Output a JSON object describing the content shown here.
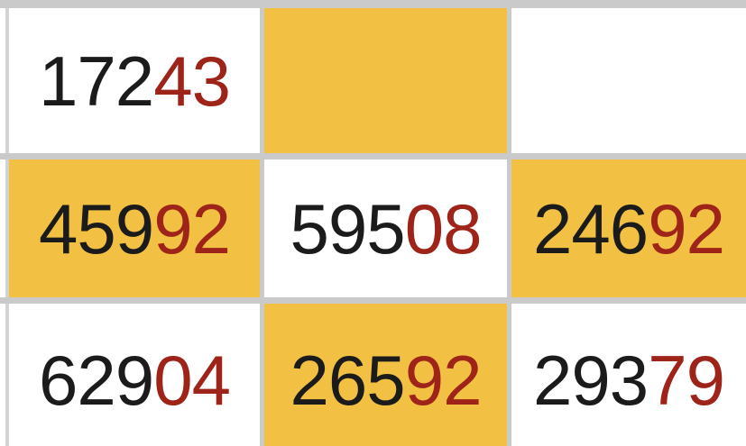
{
  "colors": {
    "highlight": "#f2c144",
    "digit_black": "#1b1b1b",
    "digit_red": "#9e2318",
    "grid_gray": "#cacaca",
    "cell_white": "#ffffff"
  },
  "grid": {
    "rows": [
      {
        "cells": [
          {
            "main": "172",
            "suffix": "43",
            "highlight": false
          },
          {
            "main": "",
            "suffix": "",
            "highlight": true
          },
          {
            "main": "",
            "suffix": "",
            "highlight": false
          }
        ]
      },
      {
        "cells": [
          {
            "main": "459",
            "suffix": "92",
            "highlight": true
          },
          {
            "main": "595",
            "suffix": "08",
            "highlight": false
          },
          {
            "main": "246",
            "suffix": "92",
            "highlight": true
          }
        ]
      },
      {
        "cells": [
          {
            "main": "629",
            "suffix": "04",
            "highlight": false
          },
          {
            "main": "265",
            "suffix": "92",
            "highlight": true
          },
          {
            "main": "293",
            "suffix": "79",
            "highlight": false
          }
        ]
      }
    ]
  }
}
